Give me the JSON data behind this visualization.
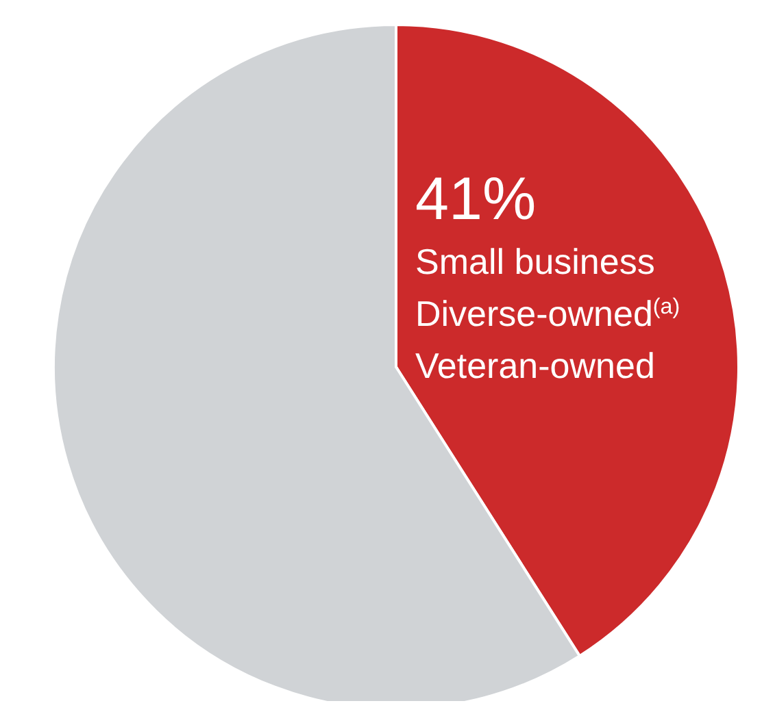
{
  "chart_data": {
    "type": "pie",
    "categories": [
      "Small business\nDiverse-owned$^{(a)}$\nVeteran-owned",
      null
    ],
    "values": [
      41,
      59
    ],
    "colors": [
      "#cc2a2b",
      "#d0d3d6"
    ],
    "value_labels": [
      "41%",
      null
    ],
    "legend": false
  }
}
